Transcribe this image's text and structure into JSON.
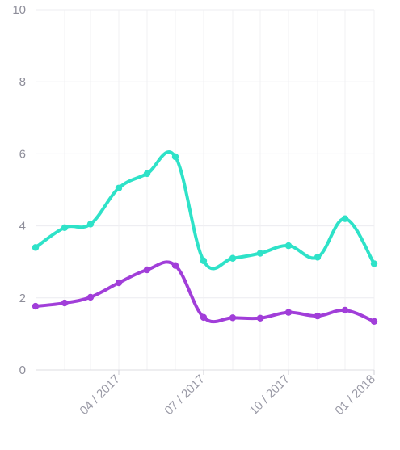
{
  "chart_data": {
    "type": "line",
    "title": "",
    "xlabel": "",
    "ylabel": "",
    "ylim": [
      0,
      10
    ],
    "y_ticks": [
      "0",
      "2",
      "4",
      "6",
      "8",
      "10"
    ],
    "x_tick_labels": [
      "04 / 2017",
      "07 / 2017",
      "10 / 2017",
      "01 / 2018"
    ],
    "x": [
      "2017-01",
      "2017-02",
      "2017-03",
      "2017-04",
      "2017-05",
      "2017-06",
      "2017-07",
      "2017-08",
      "2017-09",
      "2017-10",
      "2017-11",
      "2017-12",
      "2018-01"
    ],
    "grid": true,
    "legend": "none",
    "series": [
      {
        "color": "#2ee2c8",
        "values": [
          3.4,
          3.95,
          4.05,
          5.05,
          5.45,
          5.92,
          3.03,
          3.1,
          3.24,
          3.45,
          3.13,
          4.2,
          2.95
        ]
      },
      {
        "color": "#a13ed9",
        "values": [
          1.77,
          1.86,
          2.02,
          2.42,
          2.78,
          2.9,
          1.46,
          1.45,
          1.44,
          1.6,
          1.5,
          1.66,
          1.35
        ]
      }
    ]
  }
}
